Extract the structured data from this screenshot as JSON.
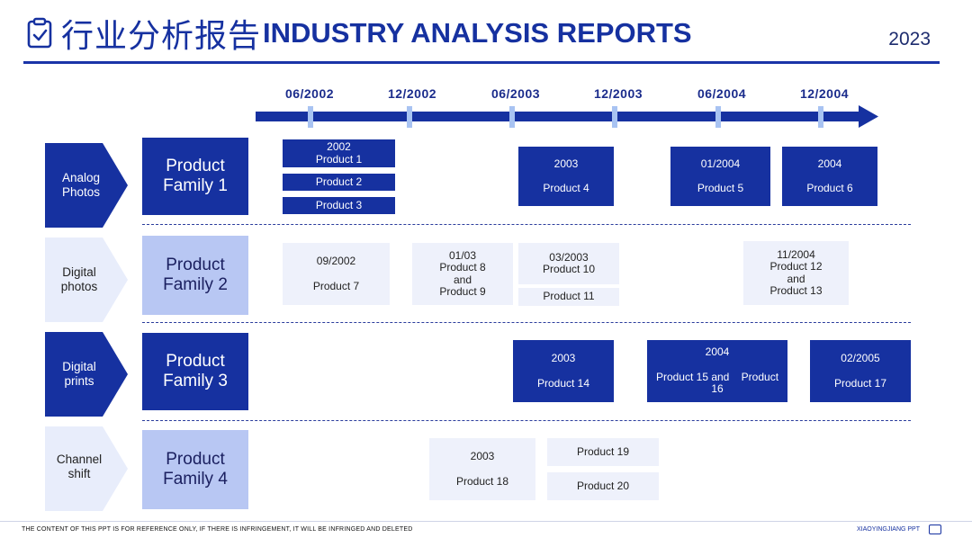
{
  "header": {
    "title_cn": "行业分析报告",
    "title_en": "INDUSTRY ANALYSIS REPORTS",
    "year": "2023",
    "icon": "clipboard-check-icon",
    "accent": "#1631a0"
  },
  "timeline": {
    "labels": [
      "06/2002",
      "12/2002",
      "06/2003",
      "12/2003",
      "06/2004",
      "12/2004"
    ]
  },
  "rows": [
    {
      "category": "Analog\nPhotos",
      "family": "Product\nFamily 1"
    },
    {
      "category": "Digital\nphotos",
      "family": "Product\nFamily 2"
    },
    {
      "category": "Digital\nprints",
      "family": "Product\nFamily 3"
    },
    {
      "category": "Channel\nshift",
      "family": "Product\nFamily 4"
    }
  ],
  "boxes": {
    "b1": {
      "date": "2002",
      "name": "Product 1"
    },
    "b2": {
      "name": "Product 2"
    },
    "b3": {
      "name": "Product 3"
    },
    "b4": {
      "date": "2003",
      "name": "Product 4"
    },
    "b5": {
      "date": "01/2004",
      "name": "Product 5"
    },
    "b6": {
      "date": "2004",
      "name": "Product 6"
    },
    "b7": {
      "date": "09/2002",
      "name": "Product 7"
    },
    "b8": {
      "date": "01/03",
      "name": "Product 8\nand\nProduct 9"
    },
    "b10": {
      "date": "03/2003",
      "name": "Product 10"
    },
    "b11": {
      "name": "Product 11"
    },
    "b12": {
      "date": "11/2004",
      "name": "Product 12\nand\nProduct 13"
    },
    "b14": {
      "date": "2003",
      "name": "Product 14"
    },
    "b15": {
      "date": "2004",
      "name": "Product 15 and    Product\n16"
    },
    "b17": {
      "date": "02/2005",
      "name": "Product 17"
    },
    "b18": {
      "date": "2003",
      "name": "Product 18"
    },
    "b19": {
      "name": "Product 19"
    },
    "b20": {
      "name": "Product 20"
    }
  },
  "footer": {
    "disclaimer": "THE CONTENT OF THIS PPT IS FOR REFERENCE ONLY, IF THERE IS INFRINGEMENT, IT WILL BE INFRINGED AND DELETED",
    "brand": "XIAOYINGJIANG PPT"
  }
}
